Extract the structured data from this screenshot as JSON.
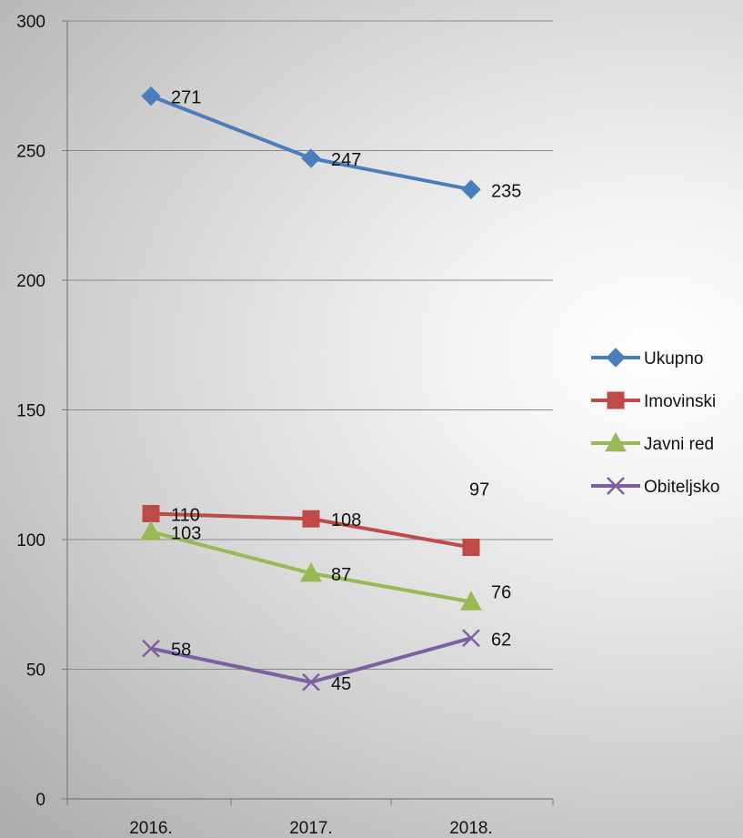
{
  "chart_data": {
    "type": "line",
    "categories": [
      "2016.",
      "2017.",
      "2018."
    ],
    "ylim": [
      0,
      300
    ],
    "yticks": [
      0,
      50,
      100,
      150,
      200,
      250,
      300
    ],
    "grid": true,
    "legend_position": "right",
    "series": [
      {
        "name": "Ukupno",
        "values": [
          271,
          247,
          235
        ],
        "color": "#4a7ebb",
        "marker": "diamond"
      },
      {
        "name": "Imovinski",
        "values": [
          110,
          108,
          97
        ],
        "color": "#be4b48",
        "marker": "square"
      },
      {
        "name": "Javni red",
        "values": [
          103,
          87,
          76
        ],
        "color": "#98b954",
        "marker": "triangle"
      },
      {
        "name": "Obiteljsko",
        "values": [
          58,
          45,
          62
        ],
        "color": "#7d60a0",
        "marker": "x"
      }
    ]
  }
}
